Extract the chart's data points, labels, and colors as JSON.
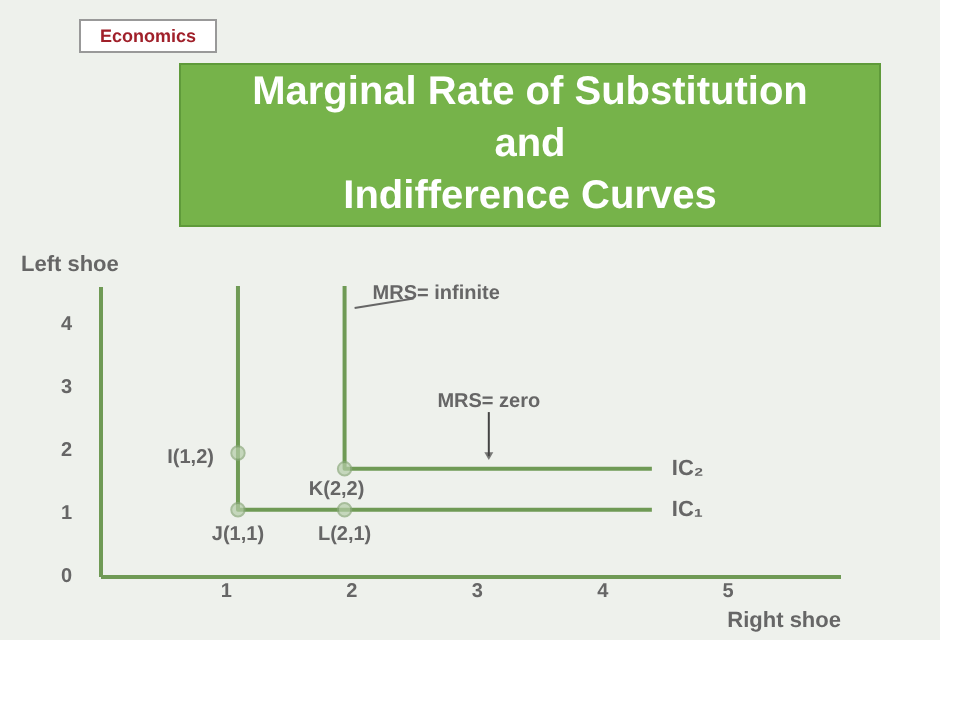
{
  "chart_data": {
    "type": "line",
    "title": "Marginal Rate of Substitution\nand\nIndifference Curves",
    "xlabel": "Right shoe",
    "ylabel": "Left shoe",
    "xlim": [
      0,
      5.9
    ],
    "ylim": [
      0,
      4.6
    ],
    "xticks": [
      1,
      2,
      3,
      4,
      5
    ],
    "yticks": [
      0,
      1,
      2,
      3,
      4
    ],
    "grid": false,
    "legend": false,
    "line_style": "solid",
    "series": [
      {
        "name": "IC₂",
        "color": "#6f9a55",
        "x": [
          1.95,
          1.95,
          4.4
        ],
        "values": [
          4.6,
          1.7,
          1.7
        ]
      },
      {
        "name": "IC₁",
        "color": "#6f9a55",
        "x": [
          1.1,
          1.1,
          4.4
        ],
        "values": [
          4.6,
          1.05,
          1.05
        ]
      },
      {
        "color": "#b5cda8",
        "type": "scatter",
        "marker": "circle",
        "x": [
          1.1,
          1.1,
          1.95,
          1.95
        ],
        "values": [
          1.95,
          1.05,
          1.7,
          1.05
        ]
      }
    ],
    "annotations": [
      "Economics",
      {
        "text": "MRS= infinite",
        "x": 1.95,
        "y": 4.3
      },
      {
        "text": "MRS= zero",
        "x": 3.1,
        "y": 1.7
      },
      {
        "text": "I(1,2)",
        "x": 1.1,
        "y": 1.95
      },
      {
        "text": "J(1,1)",
        "x": 1.1,
        "y": 1.05
      },
      {
        "text": "K(2,2)",
        "x": 1.95,
        "y": 1.7
      },
      {
        "text": "L(2,1)",
        "x": 1.95,
        "y": 1.05
      }
    ]
  }
}
